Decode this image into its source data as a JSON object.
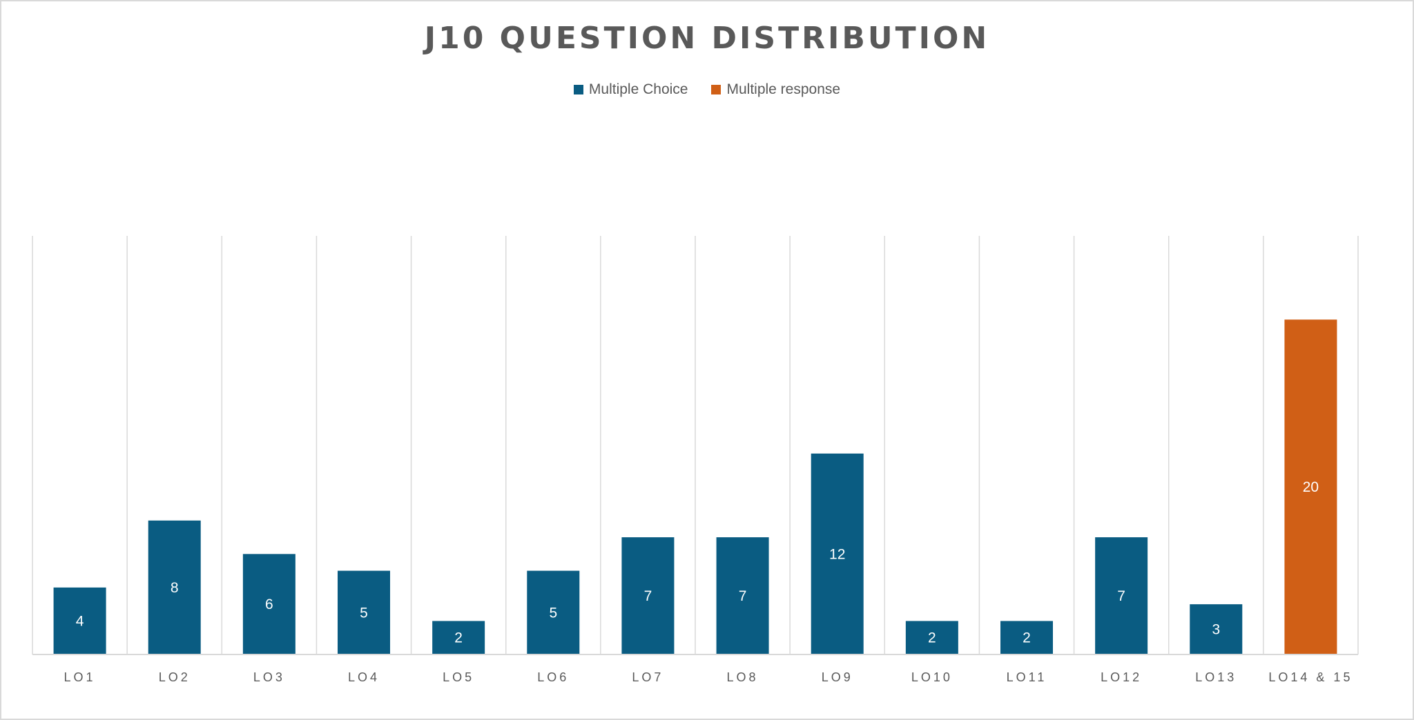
{
  "chart_data": {
    "type": "bar",
    "title": "J10 QUESTION DISTRIBUTION",
    "xlabel": "",
    "ylabel": "",
    "categories": [
      "LO1",
      "LO2",
      "LO3",
      "LO4",
      "LO5",
      "LO6",
      "LO7",
      "LO8",
      "LO9",
      "LO10",
      "LO11",
      "LO12",
      "LO13",
      "LO14 & 15"
    ],
    "series": [
      {
        "name": "Multiple Choice",
        "color": "#0A5C82",
        "values": [
          4,
          8,
          6,
          5,
          2,
          5,
          7,
          7,
          12,
          2,
          2,
          7,
          3,
          null
        ]
      },
      {
        "name": "Multiple response",
        "color": "#D05F16",
        "values": [
          null,
          null,
          null,
          null,
          null,
          null,
          null,
          null,
          null,
          null,
          null,
          null,
          null,
          20
        ]
      }
    ],
    "ylim": [
      0,
      25
    ],
    "y_axis_visible": false,
    "grid": "vertical category separators",
    "legend_position": "top",
    "data_labels": true
  }
}
